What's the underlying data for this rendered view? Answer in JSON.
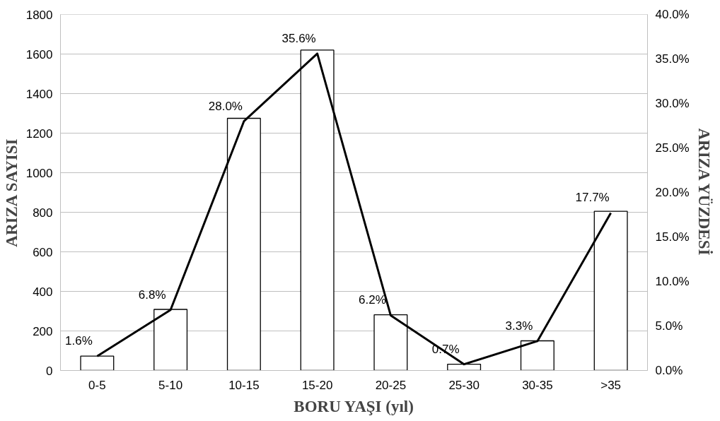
{
  "chart_data": {
    "type": "bar",
    "xlabel": "BORU YAŞI (yıl)",
    "ylabel": "ARIZA SAYISI",
    "y2label": "ARIZA YÜZDESİ",
    "categories": [
      "0-5",
      "5-10",
      "10-15",
      "15-20",
      "20-25",
      "25-30",
      "30-35",
      ">35"
    ],
    "series": [
      {
        "color": "#ffffff",
        "values": [
          73,
          309,
          1275,
          1620,
          282,
          32,
          150,
          805
        ]
      },
      {
        "type": "line",
        "color": "#000000",
        "axis": "y2",
        "values": [
          1.6,
          6.8,
          28.0,
          35.6,
          6.2,
          0.7,
          3.3,
          17.7
        ],
        "value_labels": [
          "1.6%",
          "6.8%",
          "28.0%",
          "35.6%",
          "6.2%",
          "0.7%",
          "3.3%",
          "17.7%"
        ]
      }
    ],
    "ylim": [
      0,
      1800
    ],
    "yticks": [
      0,
      200,
      400,
      600,
      800,
      1000,
      1200,
      1400,
      1600,
      1800
    ],
    "y2lim": [
      0,
      40
    ],
    "y2ticks": [
      {
        "value": 0,
        "label": "0.0%"
      },
      {
        "value": 5,
        "label": "5.0%"
      },
      {
        "value": 10,
        "label": "10.0%"
      },
      {
        "value": 15,
        "label": "15.0%"
      },
      {
        "value": 20,
        "label": "20.0%"
      },
      {
        "value": 25,
        "label": "25.0%"
      },
      {
        "value": 30,
        "label": "30.0%"
      },
      {
        "value": 35,
        "label": "35.0%"
      },
      {
        "value": 40,
        "label": "40.0%"
      }
    ],
    "grid": "y",
    "marker": "none",
    "line_style": "solid"
  }
}
